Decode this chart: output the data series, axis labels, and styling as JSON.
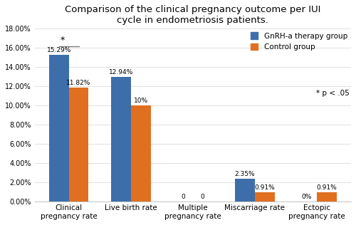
{
  "title": "Comparison of the clinical pregnancy outcome per IUI\ncycle in endometriosis patients.",
  "categories": [
    "Clinical\npregnancy rate",
    "Live birth rate",
    "Multiple\npregnancy rate",
    "Miscarriage rate",
    "Ectopic\npregnancy rate"
  ],
  "gnrh_values": [
    15.29,
    12.94,
    0.0,
    2.35,
    0.0
  ],
  "control_values": [
    11.82,
    10.0,
    0.0,
    0.91,
    0.91
  ],
  "gnrh_labels": [
    "15.29%",
    "12.94%",
    "0",
    "2.35%",
    "0%"
  ],
  "control_labels": [
    "11.82%",
    "10%",
    "0",
    "0.91%",
    "0.91%"
  ],
  "gnrh_color": "#3D6EAA",
  "control_color": "#E07020",
  "ylim": [
    0,
    18.0
  ],
  "yticks": [
    0.0,
    2.0,
    4.0,
    6.0,
    8.0,
    10.0,
    12.0,
    14.0,
    16.0,
    18.0
  ],
  "ytick_labels": [
    "0.00%",
    "2.00%",
    "4.00%",
    "6.00%",
    "8.00%",
    "10.00%",
    "12.00%",
    "14.00%",
    "16.00%",
    "18.00%"
  ],
  "legend_gnrh": "GnRH-a therapy group",
  "legend_control": "Control group",
  "legend_note": "* p < .05",
  "significance_marker": "*",
  "bar_width": 0.32,
  "background_color": "#ffffff"
}
